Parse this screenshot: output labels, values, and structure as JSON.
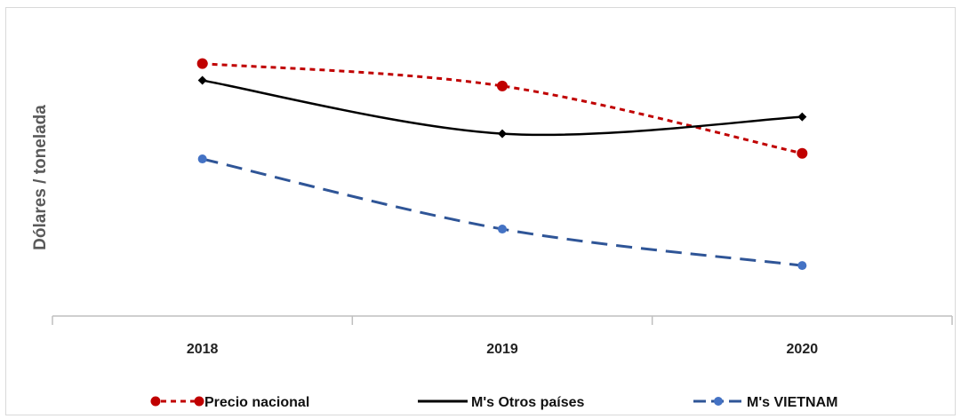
{
  "chart_data": {
    "type": "line",
    "title": "",
    "xlabel": "",
    "ylabel": "Dólares / tonelada",
    "categories": [
      "2018",
      "2019",
      "2020"
    ],
    "ylim": [
      0,
      100
    ],
    "grid": false,
    "legend_position": "bottom",
    "series": [
      {
        "name": "Precio nacional",
        "values": [
          90,
          82,
          58
        ],
        "color": "#c00000",
        "style": "dotted",
        "marker": "circle"
      },
      {
        "name": "M's Otros países",
        "values": [
          84,
          65,
          71
        ],
        "color": "#000000",
        "style": "solid",
        "marker": "diamond"
      },
      {
        "name": "M's VIETNAM",
        "values": [
          56,
          31,
          18
        ],
        "color": "#2f5597",
        "style": "dashed",
        "marker": "circle",
        "marker_color": "#4472c4"
      }
    ]
  }
}
